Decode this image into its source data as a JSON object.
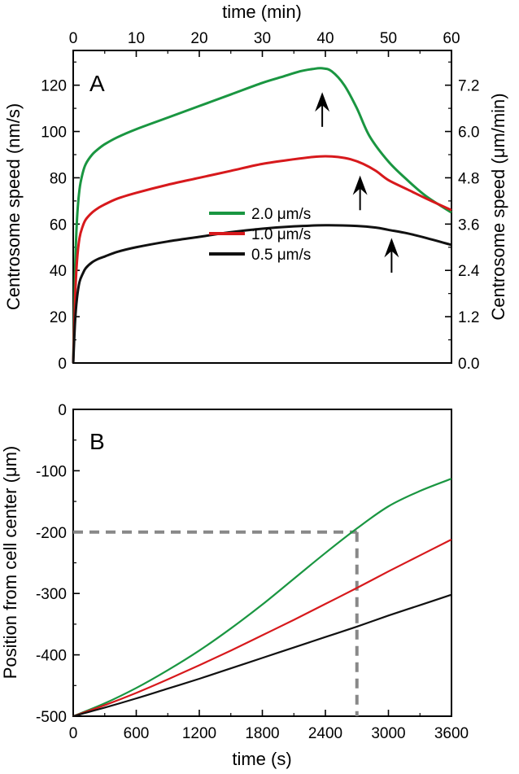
{
  "chart_data": [
    {
      "type": "line",
      "panel_label": "A",
      "xlabel_top": "time (min)",
      "ylabel": "Centrosome speed (nm/s)",
      "ylabel_right": "Centrosome speed (μm/min)",
      "xlim": [
        0,
        60
      ],
      "ylim": [
        0,
        135
      ],
      "ylim_right": [
        0,
        8.1
      ],
      "x_ticks": [
        0,
        10,
        20,
        30,
        40,
        50,
        60
      ],
      "x_tick_labels": [
        "0",
        "10",
        "20",
        "30",
        "40",
        "50",
        "60"
      ],
      "y_ticks": [
        0,
        20,
        40,
        60,
        80,
        100,
        120
      ],
      "y_tick_labels": [
        "0",
        "20",
        "40",
        "60",
        "80",
        "100",
        "120"
      ],
      "y_ticks_right": [
        0,
        1.2,
        2.4,
        3.6,
        4.8,
        6.0,
        7.2
      ],
      "y_tick_labels_right": [
        "0.0",
        "1.2",
        "2.4",
        "3.6",
        "4.8",
        "6.0",
        "7.2"
      ],
      "legend_position": "center",
      "grid": false,
      "series": [
        {
          "name": "2.0 μm/s",
          "color": "#1a9641",
          "x": [
            0,
            0.3,
            0.6,
            1,
            1.5,
            2,
            3,
            4,
            5,
            7,
            10,
            15,
            20,
            25,
            30,
            33,
            36,
            38,
            39.5,
            41,
            43,
            45,
            47,
            50,
            53,
            56,
            60
          ],
          "y": [
            0,
            40,
            62,
            75,
            82,
            86,
            90,
            92.5,
            94.5,
            97.5,
            101,
            106,
            111,
            116,
            121,
            123.5,
            126,
            127,
            127.3,
            126,
            120,
            110,
            98,
            87,
            79,
            72,
            65
          ]
        },
        {
          "name": "1.0 μm/s",
          "color": "#d7191c",
          "x": [
            0,
            0.3,
            0.6,
            1,
            1.5,
            2,
            3,
            4,
            5,
            7,
            10,
            15,
            20,
            25,
            30,
            35,
            38,
            40,
            42,
            44,
            46,
            48,
            50,
            53,
            56,
            60
          ],
          "y": [
            0,
            28,
            44,
            54,
            59,
            62,
            65,
            67,
            68.5,
            71,
            73.5,
            77,
            80,
            83,
            86,
            88,
            89,
            89.3,
            89,
            88,
            86,
            83,
            79,
            75,
            71,
            66
          ]
        },
        {
          "name": "0.5 μm/s",
          "color": "#111111",
          "x": [
            0,
            0.3,
            0.6,
            1,
            1.5,
            2,
            3,
            4,
            5,
            7,
            10,
            15,
            20,
            25,
            30,
            35,
            40,
            45,
            48,
            50,
            53,
            56,
            60
          ],
          "y": [
            0,
            18,
            28,
            35,
            38.5,
            41,
            43.5,
            45,
            46,
            48,
            50,
            52.5,
            54.5,
            56.5,
            58,
            59,
            59.5,
            59.2,
            58.5,
            57.5,
            56,
            54,
            51
          ]
        }
      ],
      "annotations": [
        {
          "type": "arrow",
          "x": 39.5,
          "y_tip": 117,
          "y_tail": 102
        },
        {
          "type": "arrow",
          "x": 45.5,
          "y_tip": 81,
          "y_tail": 66
        },
        {
          "type": "arrow",
          "x": 50.5,
          "y_tip": 54,
          "y_tail": 39
        }
      ]
    },
    {
      "type": "line",
      "panel_label": "B",
      "xlabel": "time (s)",
      "ylabel": "Position from cell center (μm)",
      "xlim": [
        0,
        3600
      ],
      "ylim": [
        -500,
        0
      ],
      "x_ticks": [
        0,
        600,
        1200,
        1800,
        2400,
        3000,
        3600
      ],
      "x_tick_labels": [
        "0",
        "600",
        "1200",
        "1800",
        "2400",
        "3000",
        "3600"
      ],
      "y_ticks": [
        -500,
        -400,
        -300,
        -200,
        -100,
        0
      ],
      "y_tick_labels": [
        "-500",
        "-400",
        "-300",
        "-200",
        "-100",
        "0"
      ],
      "grid": false,
      "series": [
        {
          "color": "#1a9641",
          "x": [
            0,
            300,
            600,
            900,
            1200,
            1500,
            1800,
            2100,
            2400,
            2700,
            3000,
            3300,
            3600
          ],
          "y": [
            -500,
            -479,
            -454,
            -425,
            -393,
            -357,
            -318,
            -276,
            -234,
            -194,
            -158,
            -133,
            -113
          ]
        },
        {
          "color": "#d7191c",
          "x": [
            0,
            300,
            600,
            900,
            1200,
            1500,
            1800,
            2100,
            2400,
            2700,
            3000,
            3300,
            3600
          ],
          "y": [
            -500,
            -482,
            -462,
            -440,
            -417,
            -393,
            -368,
            -343,
            -317,
            -291,
            -264,
            -238,
            -212
          ]
        },
        {
          "color": "#111111",
          "x": [
            0,
            300,
            600,
            900,
            1200,
            1500,
            1800,
            2100,
            2400,
            2700,
            3000,
            3300,
            3600
          ],
          "y": [
            -500,
            -486,
            -471,
            -455,
            -439,
            -422,
            -405,
            -388,
            -371,
            -354,
            -336,
            -319,
            -302
          ]
        }
      ],
      "reference_lines": {
        "color": "#888888",
        "style": "dashed",
        "horizontal": {
          "y": -200,
          "x_from": 0,
          "x_to": 2700
        },
        "vertical": {
          "x": 2700,
          "y_from": -200,
          "y_to": -500
        }
      }
    }
  ]
}
